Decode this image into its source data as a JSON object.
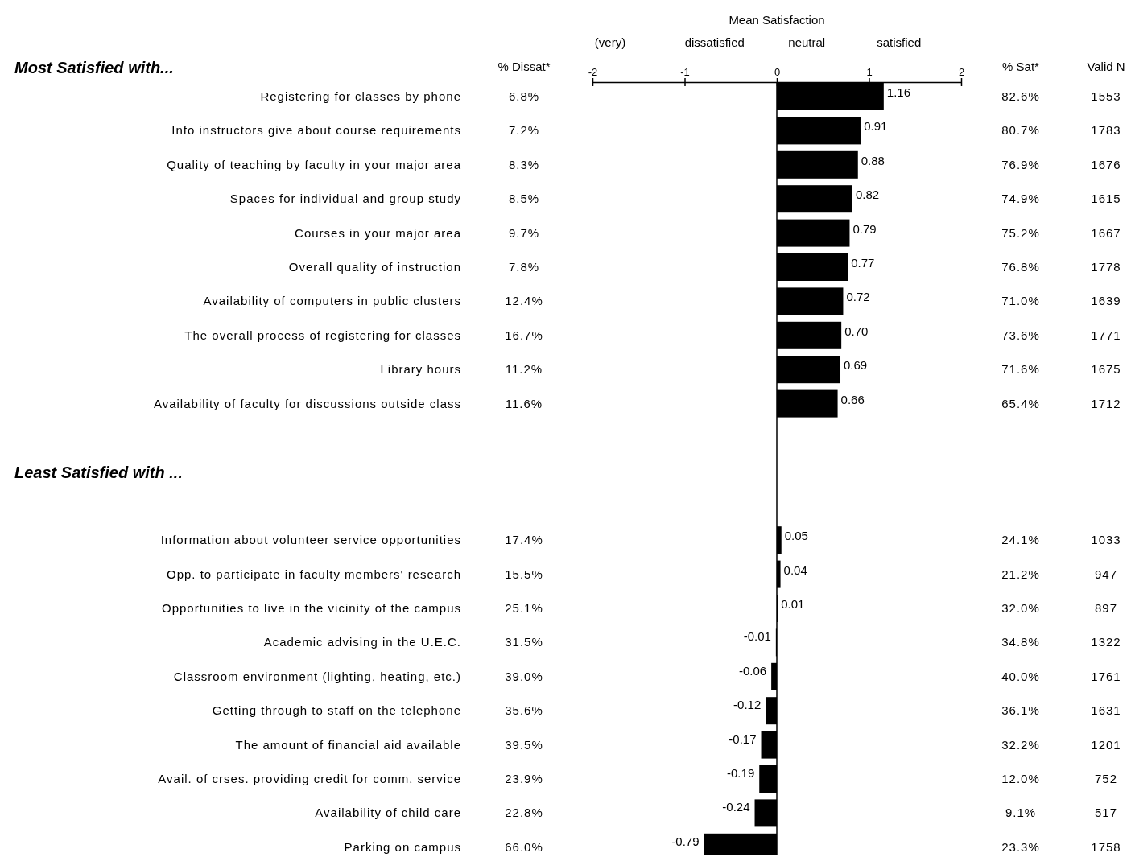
{
  "chart_data": [
    {
      "type": "bar",
      "orientation": "horizontal",
      "x2label": "Mean Satisfaction",
      "categories": [
        "Registering for classes by phone",
        "Info instructors give about course requirements",
        "Quality of teaching by faculty in your major area",
        "Spaces for individual and group study",
        "Courses in your major area",
        "Overall quality of instruction",
        "Availability of computers in public clusters",
        "The overall process of registering for classes",
        "Library hours",
        "Availability of faculty for discussions outside class",
        null,
        null,
        null,
        "Information about volunteer service opportunities",
        "Opp. to participate in faculty members' research",
        "Opportunities to live in the vicinity of the campus",
        "Academic advising in the U.E.C.",
        "Classroom environment (lighting, heating, etc.)",
        "Getting through to staff on the telephone",
        "The amount of financial aid available",
        "Avail. of crses. providing credit for comm. service",
        "Availability of child care",
        "Parking on campus"
      ],
      "values": [
        1.16,
        0.91,
        0.88,
        0.82,
        0.79,
        0.77,
        0.72,
        0.7,
        0.69,
        0.66,
        null,
        null,
        null,
        0.05,
        0.04,
        0.01,
        -0.01,
        -0.06,
        -0.12,
        -0.17,
        -0.19,
        -0.24,
        -0.79
      ],
      "value_labels": [
        "1.16",
        "0.91",
        "0.88",
        "0.82",
        "0.79",
        "0.77",
        "0.72",
        "0.70",
        "0.69",
        "0.66",
        null,
        null,
        null,
        "0.05",
        "0.04",
        "0.01",
        "-0.01",
        "-0.06",
        "-0.12",
        "-0.17",
        "-0.19",
        "-0.24",
        "-0.79"
      ],
      "color": "#000000",
      "x2lim": [
        -2,
        2
      ],
      "x2ticks": [
        -2,
        -1,
        0,
        1,
        2
      ],
      "ref_lines": [
        {
          "axis": "x",
          "value": 0,
          "color": "#000000"
        }
      ],
      "annotations": [
        "(very)",
        "dissatisfied",
        "neutral",
        "satisfied",
        "Most Satisfied with...",
        "Least Satisfied with ..."
      ]
    },
    {
      "type": "other",
      "title": "% Dissat*",
      "annotations": [
        "6.8%",
        "7.2%",
        "8.3%",
        "8.5%",
        "9.7%",
        "7.8%",
        "12.4%",
        "16.7%",
        "11.2%",
        "11.6%",
        "17.4%",
        "15.5%",
        "25.1%",
        "31.5%",
        "39.0%",
        "35.6%",
        "39.5%",
        "23.9%",
        "22.8%",
        "66.0%"
      ]
    },
    {
      "type": "other",
      "title": "% Sat*",
      "annotations": [
        "82.6%",
        "80.7%",
        "76.9%",
        "74.9%",
        "75.2%",
        "76.8%",
        "71.0%",
        "73.6%",
        "71.6%",
        "65.4%",
        "24.1%",
        "21.2%",
        "32.0%",
        "34.8%",
        "40.0%",
        "36.1%",
        "32.2%",
        "12.0%",
        "9.1%",
        "23.3%"
      ]
    },
    {
      "type": "other",
      "title": "Valid N",
      "annotations": [
        "1553",
        "1783",
        "1676",
        "1615",
        "1667",
        "1778",
        "1639",
        "1771",
        "1675",
        "1712",
        "1033",
        "947",
        "897",
        "1322",
        "1761",
        "1631",
        "1201",
        "752",
        "517",
        "1758"
      ]
    }
  ]
}
